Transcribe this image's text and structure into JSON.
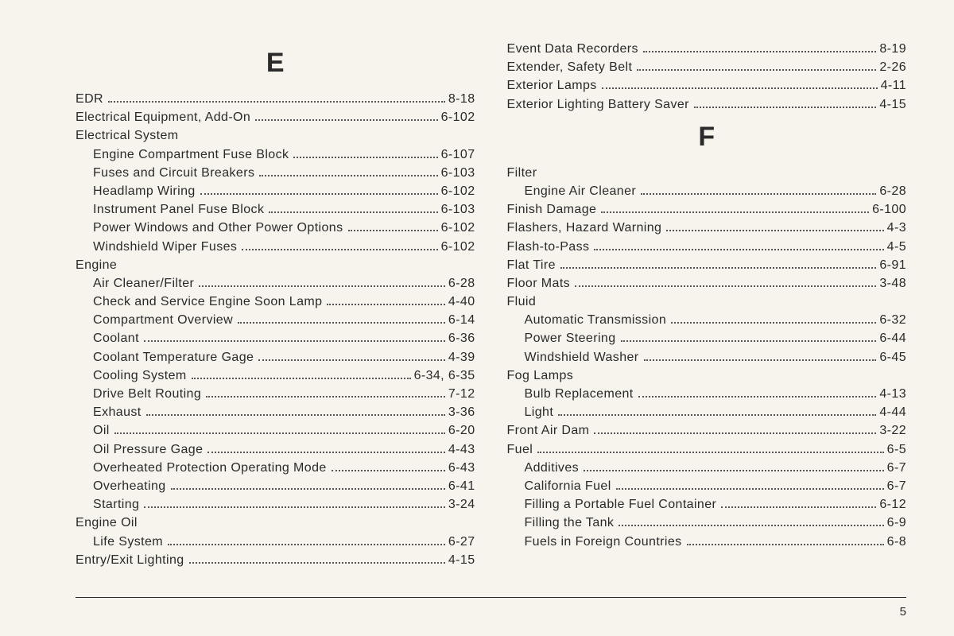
{
  "background_color": "#f7f4ed",
  "text_color": "#2a2a2a",
  "font_family": "Arial, Helvetica, sans-serif",
  "body_fontsize": 16,
  "heading_fontsize": 34,
  "page_number": "5",
  "left_column": [
    {
      "type": "letter",
      "text": "E"
    },
    {
      "type": "entry",
      "label": "EDR",
      "page": "8-18"
    },
    {
      "type": "entry",
      "label": "Electrical Equipment, Add-On",
      "page": "6-102"
    },
    {
      "type": "group",
      "label": "Electrical System"
    },
    {
      "type": "sub",
      "label": "Engine Compartment Fuse Block",
      "page": "6-107"
    },
    {
      "type": "sub",
      "label": "Fuses and Circuit Breakers",
      "page": "6-103"
    },
    {
      "type": "sub",
      "label": "Headlamp Wiring",
      "page": "6-102"
    },
    {
      "type": "sub",
      "label": "Instrument Panel Fuse Block",
      "page": "6-103"
    },
    {
      "type": "sub",
      "label": "Power Windows and Other Power Options",
      "page": "6-102"
    },
    {
      "type": "sub",
      "label": "Windshield Wiper Fuses",
      "page": "6-102"
    },
    {
      "type": "group",
      "label": "Engine"
    },
    {
      "type": "sub",
      "label": "Air Cleaner/Filter",
      "page": "6-28"
    },
    {
      "type": "sub",
      "label": "Check and Service Engine Soon Lamp",
      "page": "4-40"
    },
    {
      "type": "sub",
      "label": "Compartment Overview",
      "page": "6-14"
    },
    {
      "type": "sub",
      "label": "Coolant",
      "page": "6-36"
    },
    {
      "type": "sub",
      "label": "Coolant Temperature Gage",
      "page": "4-39"
    },
    {
      "type": "sub",
      "label": "Cooling System",
      "page": "6-34, 6-35"
    },
    {
      "type": "sub",
      "label": "Drive Belt Routing",
      "page": "7-12"
    },
    {
      "type": "sub",
      "label": "Exhaust",
      "page": "3-36"
    },
    {
      "type": "sub",
      "label": "Oil",
      "page": "6-20"
    },
    {
      "type": "sub",
      "label": "Oil Pressure Gage",
      "page": "4-43"
    },
    {
      "type": "sub",
      "label": "Overheated Protection Operating Mode",
      "page": "6-43"
    },
    {
      "type": "sub",
      "label": "Overheating",
      "page": "6-41"
    },
    {
      "type": "sub",
      "label": "Starting",
      "page": "3-24"
    },
    {
      "type": "group",
      "label": "Engine Oil"
    },
    {
      "type": "sub",
      "label": "Life System",
      "page": "6-27"
    },
    {
      "type": "entry",
      "label": "Entry/Exit Lighting",
      "page": "4-15"
    }
  ],
  "right_column": [
    {
      "type": "entry",
      "label": "Event Data Recorders",
      "page": "8-19"
    },
    {
      "type": "entry",
      "label": "Extender, Safety Belt",
      "page": "2-26"
    },
    {
      "type": "entry",
      "label": "Exterior Lamps",
      "page": "4-11"
    },
    {
      "type": "entry",
      "label": "Exterior Lighting Battery Saver",
      "page": "4-15"
    },
    {
      "type": "letter",
      "text": "F"
    },
    {
      "type": "group",
      "label": "Filter"
    },
    {
      "type": "sub",
      "label": "Engine Air Cleaner",
      "page": "6-28"
    },
    {
      "type": "entry",
      "label": "Finish Damage",
      "page": "6-100"
    },
    {
      "type": "entry",
      "label": "Flashers, Hazard Warning",
      "page": "4-3"
    },
    {
      "type": "entry",
      "label": "Flash-to-Pass",
      "page": "4-5"
    },
    {
      "type": "entry",
      "label": "Flat Tire",
      "page": "6-91"
    },
    {
      "type": "entry",
      "label": "Floor Mats",
      "page": "3-48"
    },
    {
      "type": "group",
      "label": "Fluid"
    },
    {
      "type": "sub",
      "label": "Automatic Transmission",
      "page": "6-32"
    },
    {
      "type": "sub",
      "label": "Power Steering",
      "page": "6-44"
    },
    {
      "type": "sub",
      "label": "Windshield Washer",
      "page": "6-45"
    },
    {
      "type": "group",
      "label": "Fog Lamps"
    },
    {
      "type": "sub",
      "label": "Bulb Replacement",
      "page": "4-13"
    },
    {
      "type": "sub",
      "label": "Light",
      "page": "4-44"
    },
    {
      "type": "entry",
      "label": "Front Air Dam",
      "page": "3-22"
    },
    {
      "type": "entry",
      "label": "Fuel",
      "page": "6-5"
    },
    {
      "type": "sub",
      "label": "Additives",
      "page": "6-7"
    },
    {
      "type": "sub",
      "label": "California Fuel",
      "page": "6-7"
    },
    {
      "type": "sub",
      "label": "Filling a Portable Fuel Container",
      "page": "6-12"
    },
    {
      "type": "sub",
      "label": "Filling the Tank",
      "page": "6-9"
    },
    {
      "type": "sub",
      "label": "Fuels in Foreign Countries",
      "page": "6-8"
    }
  ]
}
